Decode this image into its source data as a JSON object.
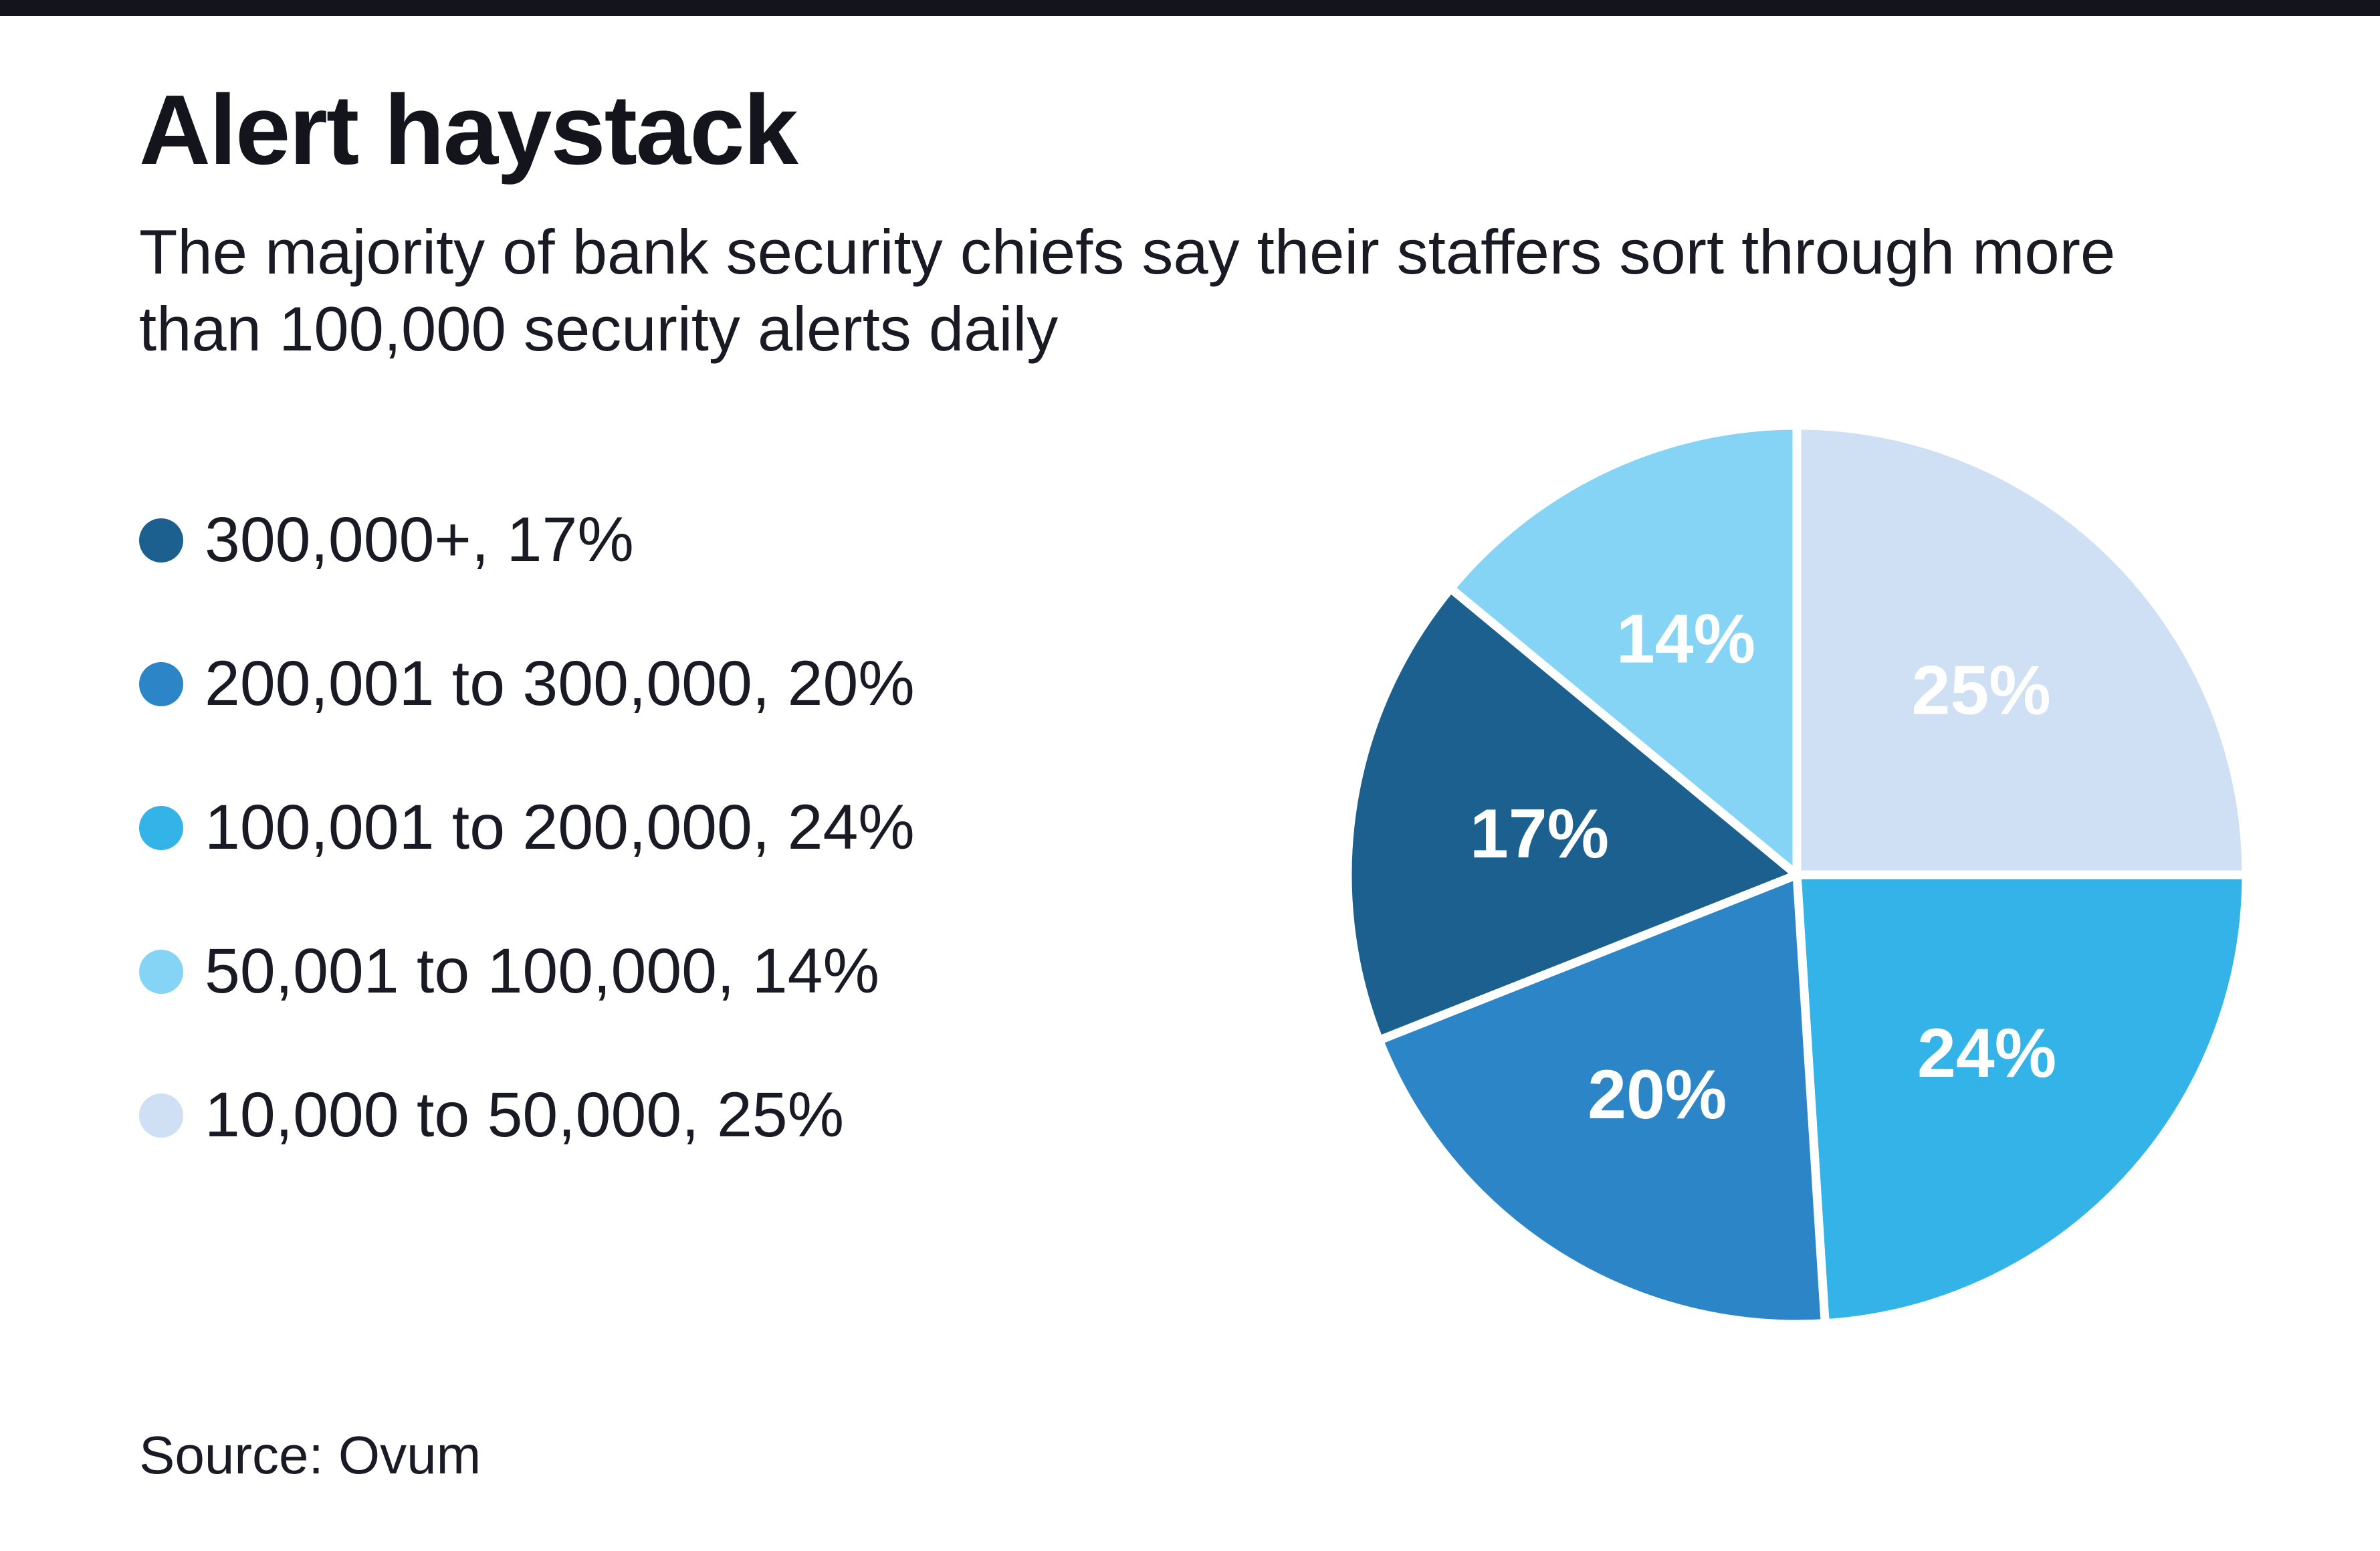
{
  "header": {
    "title": "Alert haystack",
    "subtitle": "The majority of bank security chiefs say their staffers sort through more than 100,000 security alerts daily"
  },
  "legend": {
    "items": [
      {
        "label": "300,000+, 17%",
        "color": "#1b608f"
      },
      {
        "label": "200,001 to 300,000, 20%",
        "color": "#2c85c7"
      },
      {
        "label": "100,001 to 200,000, 24%",
        "color": "#33b3e8"
      },
      {
        "label": "50,001 to 100,000, 14%",
        "color": "#85d4f6"
      },
      {
        "label": "10,000 to 50,000, 25%",
        "color": "#cfdff4"
      }
    ]
  },
  "chart_data": {
    "type": "pie",
    "title": "Alert haystack",
    "start_angle_deg": 0,
    "direction": "clockwise",
    "slice_stroke_color": "#ffffff",
    "slices": [
      {
        "label": "10,000 to 50,000",
        "value": 25,
        "display": "25%",
        "color": "#cfdff4",
        "text_color": "#ffffff"
      },
      {
        "label": "100,001 to 200,000",
        "value": 24,
        "display": "24%",
        "color": "#33b3e8",
        "text_color": "#ffffff"
      },
      {
        "label": "200,001 to 300,000",
        "value": 20,
        "display": "20%",
        "color": "#2c85c7",
        "text_color": "#ffffff"
      },
      {
        "label": "300,000+",
        "value": 17,
        "display": "17%",
        "color": "#1b608f",
        "text_color": "#ffffff"
      },
      {
        "label": "50,001 to 100,000",
        "value": 14,
        "display": "14%",
        "color": "#85d4f6",
        "text_color": "#ffffff"
      }
    ]
  },
  "footer": {
    "source": "Source: Ovum"
  },
  "colors": {
    "topbar": "#14141c",
    "background": "#ffffff",
    "text": "#1a1a24"
  }
}
